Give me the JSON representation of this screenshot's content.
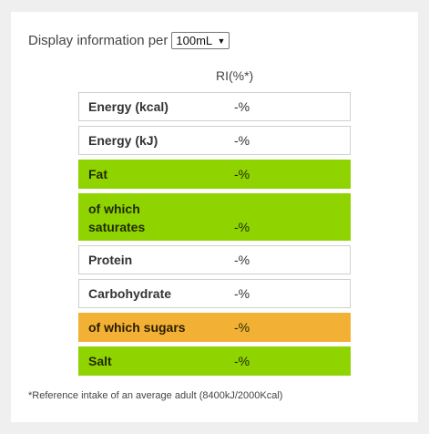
{
  "display": {
    "label": "Display information per",
    "selected": "100mL",
    "arrow": "▼"
  },
  "column_header": "RI(%*)",
  "nutrients": [
    {
      "name": "Energy (kcal)",
      "value": "-%",
      "color": "white"
    },
    {
      "name": "Energy (kJ)",
      "value": "-%",
      "color": "white"
    },
    {
      "name": "Fat",
      "value": "-%",
      "color": "green"
    },
    {
      "name_line1": "of which",
      "name_line2": "saturates",
      "value": "-%",
      "color": "green"
    },
    {
      "name": "Protein",
      "value": "-%",
      "color": "white"
    },
    {
      "name": "Carbohydrate",
      "value": "-%",
      "color": "white"
    },
    {
      "name": "of which sugars",
      "value": "-%",
      "color": "amber"
    },
    {
      "name": "Salt",
      "value": "-%",
      "color": "green"
    }
  ],
  "colors": {
    "green": "#8fd300",
    "amber": "#f2b134",
    "white": "#ffffff"
  },
  "footnote": "*Reference intake of an average adult (8400kJ/2000Kcal)"
}
